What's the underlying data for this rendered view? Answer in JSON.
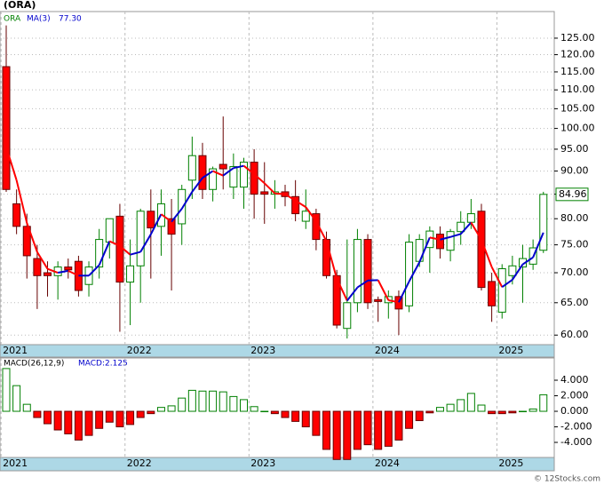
{
  "chart_data": [
    {
      "type": "candlestick",
      "title": "(ORA)",
      "symbol": "ORA",
      "log_scale": true,
      "grid": true,
      "categories": [
        "2021",
        null,
        null,
        null,
        null,
        null,
        null,
        null,
        null,
        null,
        null,
        null,
        "2022",
        null,
        null,
        null,
        null,
        null,
        null,
        null,
        null,
        null,
        null,
        null,
        "2023",
        null,
        null,
        null,
        null,
        null,
        null,
        null,
        null,
        null,
        null,
        null,
        "2024",
        null,
        null,
        null,
        null,
        null,
        null,
        null,
        null,
        null,
        null,
        null,
        "2025",
        null,
        null,
        null,
        null
      ],
      "open": [
        116.5,
        83,
        78.5,
        72.5,
        70,
        69.5,
        71,
        72,
        68,
        71,
        75.5,
        80.5,
        68.4,
        71.2,
        81.5,
        78.5,
        80,
        79,
        88,
        93.5,
        86,
        91.5,
        86.5,
        86.5,
        92,
        85.5,
        85,
        85.5,
        84.5,
        79.5,
        81,
        76,
        69.5,
        61,
        65,
        76,
        65.5,
        65,
        66,
        64.5,
        72,
        74.5,
        77,
        74,
        77.5,
        79.3,
        81.5,
        68.5,
        63.5,
        69.5,
        71,
        71.5,
        74
      ],
      "high": [
        129,
        86,
        81,
        75,
        72,
        72,
        72.5,
        73,
        72,
        78,
        80,
        83,
        76,
        82,
        86,
        86,
        84,
        87,
        98,
        96.5,
        91,
        103,
        94,
        93,
        95,
        92,
        88,
        87,
        88,
        86,
        82,
        77.5,
        70.5,
        76,
        78,
        77,
        66,
        67,
        67,
        77,
        77,
        78.5,
        78.5,
        78,
        81.5,
        84,
        83,
        70,
        71.5,
        73,
        75,
        76,
        85.5
      ],
      "low": [
        85.5,
        77,
        69,
        64,
        66,
        65.5,
        69,
        66,
        66,
        69,
        72.5,
        60.5,
        61.5,
        65,
        69,
        73,
        67,
        75,
        84,
        84,
        83.5,
        86,
        84,
        82,
        80,
        79,
        82,
        82.5,
        79.5,
        78,
        74,
        69,
        61,
        59.5,
        63.5,
        64,
        62,
        62.5,
        60,
        63.5,
        71,
        70,
        72.5,
        72,
        75,
        78,
        67,
        62,
        62.5,
        68,
        65,
        70.5,
        73.5
      ],
      "close": [
        86,
        78.5,
        73,
        69.5,
        69.5,
        71,
        70.5,
        67,
        71,
        76,
        80,
        68.4,
        71.2,
        81.5,
        78.2,
        83,
        77,
        86,
        93.5,
        86,
        90.5,
        90.5,
        91,
        92,
        85,
        85,
        85.5,
        84.5,
        81,
        81.5,
        76,
        69.5,
        61.5,
        65,
        76,
        65,
        65.2,
        66,
        64,
        75.5,
        76,
        77.6,
        74.3,
        77.5,
        79.3,
        81,
        67.5,
        64.5,
        70.7,
        71.2,
        72.5,
        74.44,
        84.96
      ],
      "up_color": "#008000",
      "down_color": "#ff0000",
      "ma": {
        "name": "MA(3)",
        "legend_value": {
          "value": 77.3,
          "label": "77.30"
        },
        "rising_color": "#0000cc",
        "falling_color": "#ff0000",
        "values": [
          95.5,
          88,
          79.17,
          73.67,
          70.67,
          70,
          70.33,
          69.5,
          69.5,
          71.33,
          75.67,
          74.8,
          73.2,
          73.7,
          76.97,
          80.9,
          79.4,
          82,
          85.5,
          88.5,
          90,
          89,
          90.67,
          91.17,
          89.33,
          87.33,
          85.17,
          85,
          83.67,
          82.33,
          79.5,
          75.67,
          69,
          65.33,
          67.5,
          68.67,
          68.73,
          65.4,
          65.07,
          68.5,
          71.83,
          76.37,
          75.97,
          76.47,
          77.03,
          79.27,
          75.93,
          71,
          67.57,
          68.8,
          71.47,
          72.71,
          77.3
        ]
      },
      "last_price": {
        "value": 84.96,
        "label": "84.96"
      },
      "ylim": [
        58.6,
        133.5
      ],
      "yticks": [
        {
          "value": 60,
          "label": "60.00"
        },
        {
          "value": 65,
          "label": "65.00"
        },
        {
          "value": 70,
          "label": "70.00"
        },
        {
          "value": 75,
          "label": "75.00"
        },
        {
          "value": 80,
          "label": "80.00"
        },
        {
          "value": 85,
          "label": "85.00"
        },
        {
          "value": 90,
          "label": "90.00"
        },
        {
          "value": 95,
          "label": "95.00"
        },
        {
          "value": 100,
          "label": "100.00"
        },
        {
          "value": 105,
          "label": "105.00"
        },
        {
          "value": 110,
          "label": "110.00"
        },
        {
          "value": 115,
          "label": "115.00"
        },
        {
          "value": 120,
          "label": "120.00"
        },
        {
          "value": 125,
          "label": "125.00"
        }
      ]
    },
    {
      "type": "bar",
      "title": "MACD(26,12,9)",
      "legend_value": "MACD:2.125",
      "categories": [
        "2021",
        null,
        null,
        null,
        null,
        null,
        null,
        null,
        null,
        null,
        null,
        null,
        "2022",
        null,
        null,
        null,
        null,
        null,
        null,
        null,
        null,
        null,
        null,
        null,
        "2023",
        null,
        null,
        null,
        null,
        null,
        null,
        null,
        null,
        null,
        null,
        null,
        "2024",
        null,
        null,
        null,
        null,
        null,
        null,
        null,
        null,
        null,
        null,
        null,
        "2025",
        null,
        null,
        null,
        null
      ],
      "values": [
        5.5,
        3.3,
        0.9,
        -0.8,
        -1.6,
        -2.4,
        -2.9,
        -3.7,
        -3.1,
        -2.2,
        -1.4,
        -2,
        -1.7,
        -0.8,
        -0.3,
        0.5,
        0.7,
        1.7,
        2.7,
        2.6,
        2.6,
        2.5,
        1.9,
        1.5,
        0.6,
        0,
        -0.3,
        -0.8,
        -1.3,
        -2,
        -3.1,
        -4.9,
        -6.2,
        -6.2,
        -4.9,
        -4.3,
        -4.9,
        -4.5,
        -3.7,
        -2.2,
        -1.2,
        -0.2,
        0.5,
        0.9,
        1.5,
        2.3,
        0.8,
        -0.3,
        -0.3,
        -0.2,
        0,
        0.3,
        2.125
      ],
      "up_color": "#008000",
      "down_color": "#ff0000",
      "ylim": [
        -5.94,
        6.86
      ],
      "yticks": [
        {
          "value": 4,
          "label": "4.000"
        },
        {
          "value": 2,
          "label": "2.000"
        },
        {
          "value": 0,
          "label": "0.000"
        },
        {
          "value": -2,
          "label": "-2.000"
        },
        {
          "value": -4,
          "label": "-4.000"
        }
      ]
    }
  ],
  "watermark": "© 12Stocks.com"
}
